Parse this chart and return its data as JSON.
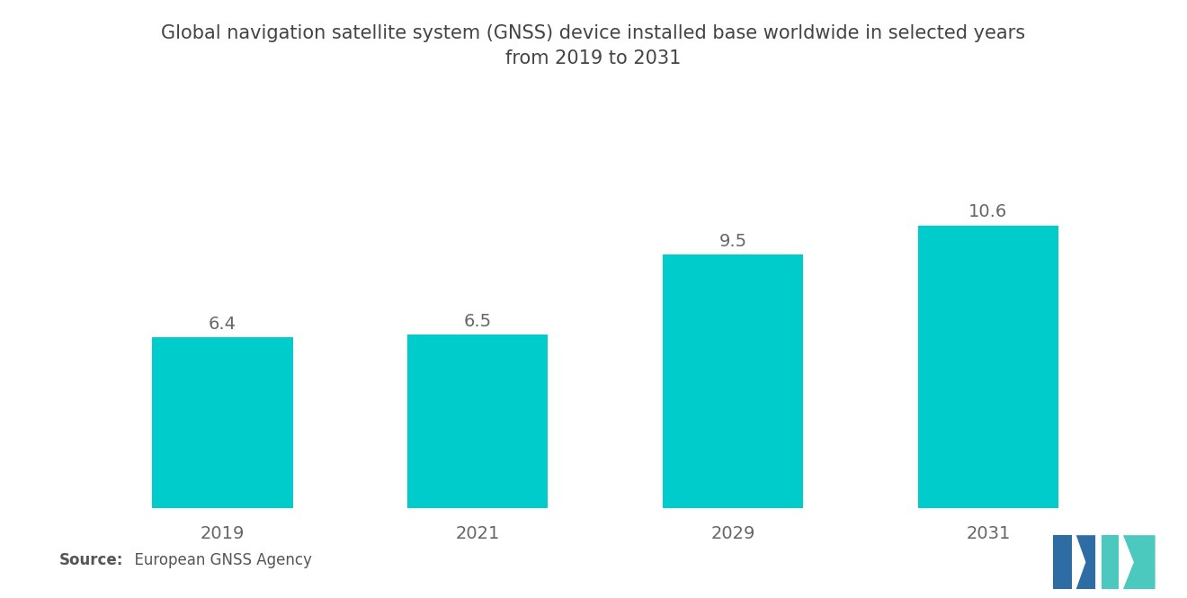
{
  "categories": [
    "2019",
    "2021",
    "2029",
    "2031"
  ],
  "values": [
    6.4,
    6.5,
    9.5,
    10.6
  ],
  "bar_color": "#00CCCC",
  "title_line1": "Global navigation satellite system (GNSS) device installed base worldwide in selected years",
  "title_line2": "from 2019 to 2031",
  "source_bold": "Source:",
  "source_text": "  European GNSS Agency",
  "bar_width": 0.55,
  "ylim": [
    0,
    13
  ],
  "label_fontsize": 14,
  "title_fontsize": 15,
  "tick_fontsize": 14,
  "source_fontsize": 12,
  "background_color": "#ffffff",
  "value_label_color": "#666666",
  "tick_color": "#666666",
  "logo_blue": "#2E6DA4",
  "logo_teal": "#4CC9BE"
}
